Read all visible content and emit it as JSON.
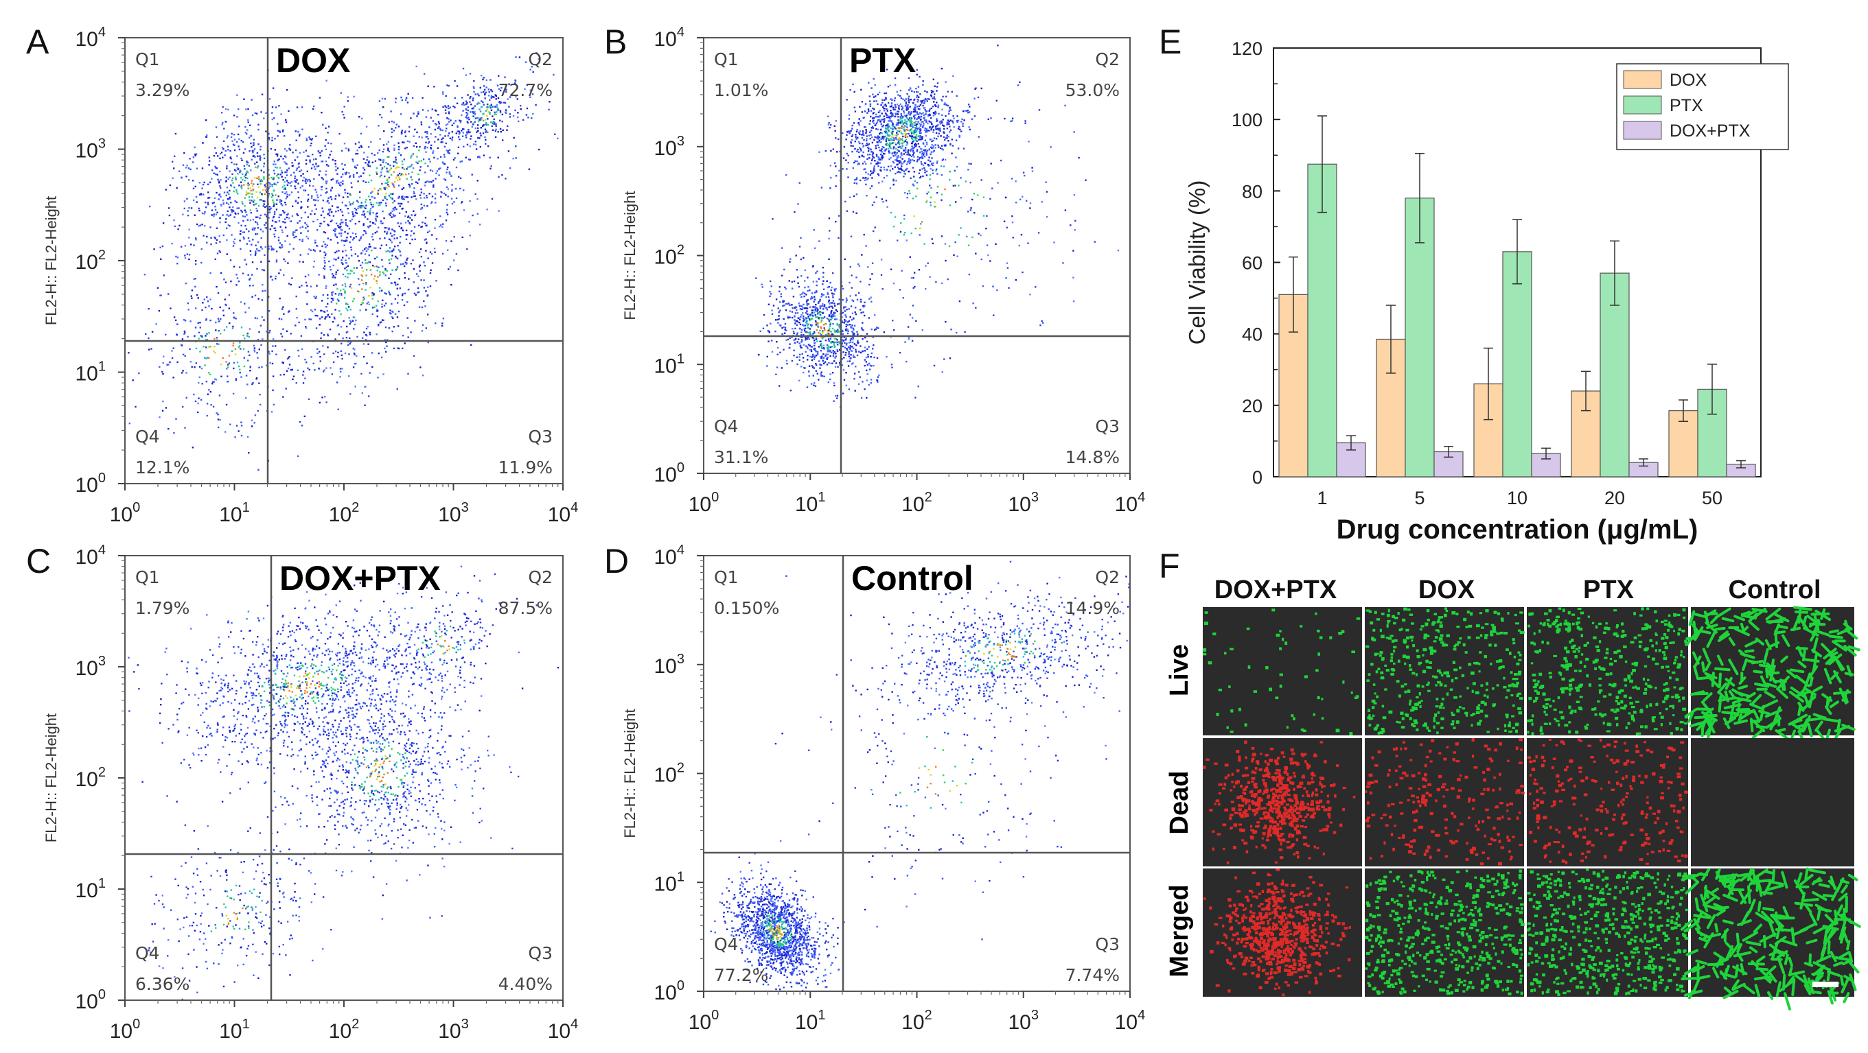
{
  "chart_data": [
    {
      "type": "scatter",
      "panel": "A",
      "title": "DOX",
      "ylabel": "FL2-H:: FL2-Height",
      "scale": "log",
      "tick_labels": [
        "10",
        "10",
        "10",
        "10",
        "10"
      ],
      "tick_exponents": [
        "0",
        "1",
        "2",
        "3",
        "4"
      ],
      "quadrants": [
        {
          "name": "Q1",
          "value": "3.29%"
        },
        {
          "name": "Q2",
          "value": "72.7%"
        },
        {
          "name": "Q3",
          "value": "11.9%"
        },
        {
          "name": "Q4",
          "value": "12.1%"
        }
      ]
    },
    {
      "type": "scatter",
      "panel": "B",
      "title": "PTX",
      "ylabel": "FL2-H:: FL2-Height",
      "scale": "log",
      "tick_labels": [
        "10",
        "10",
        "10",
        "10",
        "10"
      ],
      "tick_exponents": [
        "0",
        "1",
        "2",
        "3",
        "4"
      ],
      "quadrants": [
        {
          "name": "Q1",
          "value": "1.01%"
        },
        {
          "name": "Q2",
          "value": "53.0%"
        },
        {
          "name": "Q3",
          "value": "14.8%"
        },
        {
          "name": "Q4",
          "value": "31.1%"
        }
      ]
    },
    {
      "type": "scatter",
      "panel": "C",
      "title": "DOX+PTX",
      "ylabel": "FL2-H:: FL2-Height",
      "scale": "log",
      "tick_labels": [
        "10",
        "10",
        "10",
        "10",
        "10"
      ],
      "tick_exponents": [
        "0",
        "1",
        "2",
        "3",
        "4"
      ],
      "quadrants": [
        {
          "name": "Q1",
          "value": "1.79%"
        },
        {
          "name": "Q2",
          "value": "87.5%"
        },
        {
          "name": "Q3",
          "value": "4.40%"
        },
        {
          "name": "Q4",
          "value": "6.36%"
        }
      ]
    },
    {
      "type": "scatter",
      "panel": "D",
      "title": "Control",
      "ylabel": "FL2-H:: FL2-Height",
      "scale": "log",
      "tick_labels": [
        "10",
        "10",
        "10",
        "10",
        "10"
      ],
      "tick_exponents": [
        "0",
        "1",
        "2",
        "3",
        "4"
      ],
      "quadrants": [
        {
          "name": "Q1",
          "value": "0.150%"
        },
        {
          "name": "Q2",
          "value": "14.9%"
        },
        {
          "name": "Q3",
          "value": "7.74%"
        },
        {
          "name": "Q4",
          "value": "77.2%"
        }
      ]
    },
    {
      "type": "bar",
      "panel": "E",
      "title": "",
      "xlabel": "Drug concentration (μg/mL)",
      "ylabel": "Cell Viability (%)",
      "ylim": [
        0,
        120
      ],
      "yticks": [
        "0",
        "20",
        "40",
        "60",
        "80",
        "100",
        "120"
      ],
      "categories": [
        "1",
        "5",
        "10",
        "20",
        "50"
      ],
      "legend_position": "top-right",
      "series": [
        {
          "name": "DOX",
          "color": "#fdd5a6",
          "values": [
            51,
            38.5,
            26,
            24,
            18.5
          ],
          "errors": [
            10.5,
            9.5,
            10,
            5.5,
            3
          ]
        },
        {
          "name": "PTX",
          "color": "#9ee6b4",
          "values": [
            87.5,
            78,
            63,
            57,
            24.5
          ],
          "errors": [
            13.5,
            12.5,
            9,
            9,
            7
          ]
        },
        {
          "name": "DOX+PTX",
          "color": "#d7c7ea",
          "values": [
            9.5,
            7,
            6.5,
            4,
            3.5
          ],
          "errors": [
            2,
            1.5,
            1.5,
            1,
            1
          ]
        }
      ]
    }
  ],
  "panel_labels": {
    "A": "A",
    "B": "B",
    "C": "C",
    "D": "D",
    "E": "E",
    "F": "F"
  },
  "microscopy": {
    "columns": [
      "DOX+PTX",
      "DOX",
      "PTX",
      "Control"
    ],
    "rows": [
      "Live",
      "Dead",
      "Merged"
    ],
    "row_colors": [
      "#13b24a",
      "#e8202a",
      "#111111"
    ]
  },
  "colors": {
    "accent_green": "#1ed43a",
    "accent_red": "#e02a28",
    "image_bg": "#2b2b2b"
  }
}
